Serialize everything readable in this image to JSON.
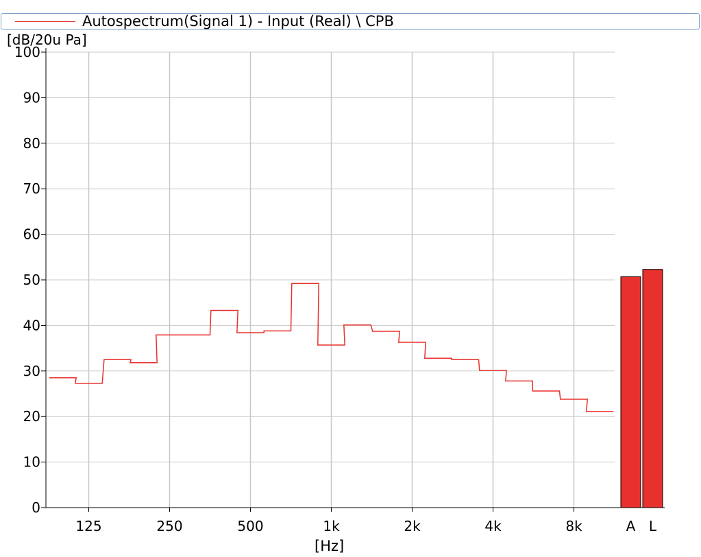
{
  "legend": {
    "label": "Autospectrum(Signal 1) - Input (Real) \\ CPB",
    "color": "#e8302d"
  },
  "axes": {
    "y_unit": "[dB/20u Pa]",
    "x_unit": "[Hz]"
  },
  "chart_data": {
    "type": "line",
    "title": "Autospectrum(Signal 1) - Input (Real) \\ CPB",
    "xlabel": "[Hz]",
    "ylabel": "[dB/20u Pa]",
    "ylim": [
      0,
      100
    ],
    "yticks": [
      0,
      10,
      20,
      30,
      40,
      50,
      60,
      70,
      80,
      90,
      100
    ],
    "xscale": "log",
    "xticks": [
      {
        "label": "125",
        "value": 125
      },
      {
        "label": "250",
        "value": 250
      },
      {
        "label": "500",
        "value": 500
      },
      {
        "label": "1k",
        "value": 1000
      },
      {
        "label": "2k",
        "value": 2000
      },
      {
        "label": "4k",
        "value": 4000
      },
      {
        "label": "8k",
        "value": 8000
      }
    ],
    "grid": true,
    "series": [
      {
        "name": "Autospectrum(Signal 1) - Input (Real) \\ CPB",
        "color": "#e8302d",
        "step": "center",
        "x": [
          100,
          125,
          160,
          200,
          250,
          315,
          400,
          500,
          630,
          800,
          1000,
          1250,
          1600,
          2000,
          2500,
          3150,
          4000,
          5000,
          6300,
          8000,
          10000
        ],
        "y": [
          28.5,
          27.3,
          32.5,
          31.8,
          37.9,
          37.9,
          43.3,
          38.4,
          38.8,
          49.2,
          35.7,
          40.1,
          38.7,
          36.3,
          32.8,
          32.5,
          30.1,
          27.8,
          25.6,
          23.8,
          21.1
        ]
      }
    ],
    "overall_levels": {
      "color": "#e8302d",
      "bars": [
        {
          "label": "A",
          "value": 50.7
        },
        {
          "label": "L",
          "value": 52.3
        }
      ]
    }
  }
}
